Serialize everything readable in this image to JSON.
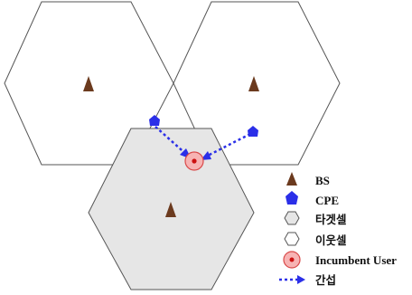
{
  "colors": {
    "hex_stroke": "#555555",
    "target_cell_fill": "#e6e6e6",
    "neighbor_cell_fill": "#ffffff",
    "bs_fill": "#6b3a1e",
    "cpe_fill": "#2b2fe8",
    "interference_line": "#2b2fe8",
    "incumbent_outer_fill": "#f7b3b3",
    "incumbent_outer_stroke": "#d94a4a",
    "incumbent_inner": "#cc1111"
  },
  "legend": {
    "bs": "BS",
    "cpe": "CPE",
    "target_cell": "타겟셀",
    "neighbor_cell": "이웃셀",
    "incumbent_user": "Incumbent User",
    "interference": "간섭"
  }
}
